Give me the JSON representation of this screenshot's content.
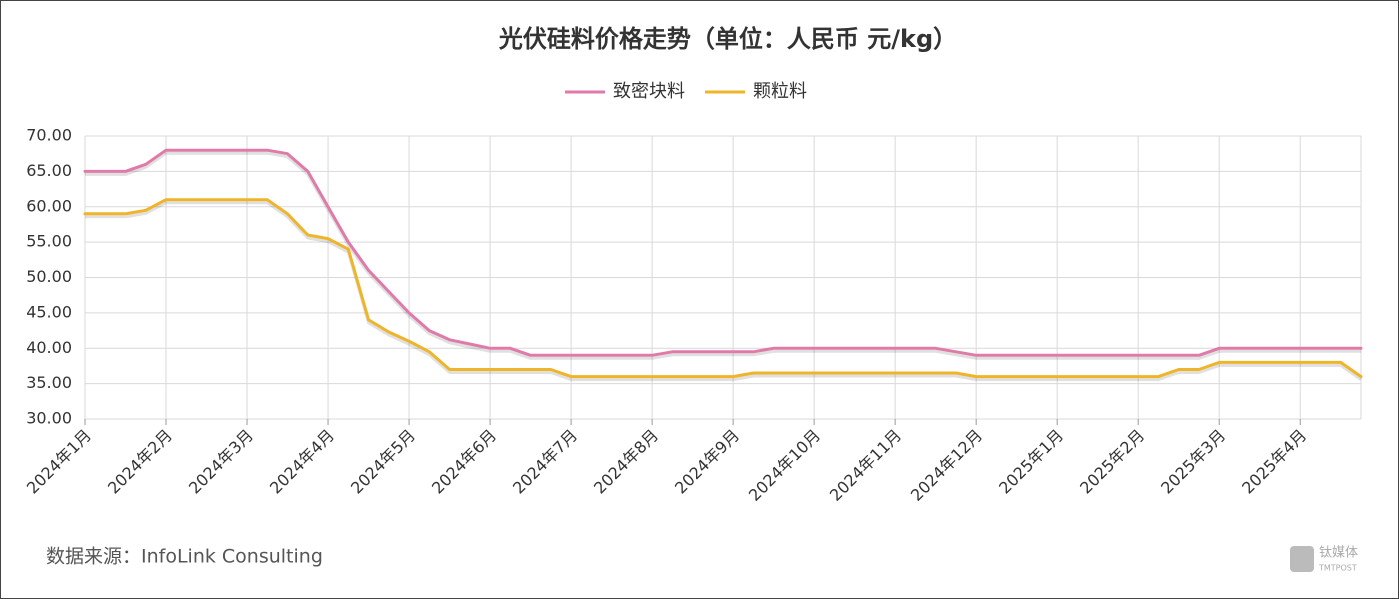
{
  "chart_data": {
    "type": "line",
    "title": "光伏硅料价格走势（单位：人民币 元/kg）",
    "source": "数据来源：InfoLink Consulting",
    "watermark": "钛媒体",
    "watermark_sub": "TMTPOST",
    "categories": [
      "2024年1月",
      null,
      null,
      null,
      "2024年2月",
      null,
      null,
      null,
      "2024年3月",
      null,
      null,
      null,
      "2024年4月",
      null,
      null,
      null,
      "2024年5月",
      null,
      null,
      null,
      "2024年6月",
      null,
      null,
      null,
      "2024年7月",
      null,
      null,
      null,
      "2024年8月",
      null,
      null,
      null,
      "2024年9月",
      null,
      null,
      null,
      "2024年10月",
      null,
      null,
      null,
      "2024年11月",
      null,
      null,
      null,
      "2024年12月",
      null,
      null,
      null,
      "2025年1月",
      null,
      null,
      null,
      "2025年2月",
      null,
      null,
      null,
      "2025年3月",
      null,
      null,
      null,
      "2025年4月",
      null,
      null,
      null
    ],
    "series": [
      {
        "name": "致密块料",
        "color": "#e07aa8",
        "values": [
          65,
          65,
          65,
          66,
          68,
          68,
          68,
          68,
          68,
          68,
          67.5,
          65,
          60,
          55,
          51,
          48,
          45,
          42.5,
          41.2,
          40.6,
          40,
          40,
          39,
          39,
          39,
          39,
          39,
          39,
          39,
          39.5,
          39.5,
          39.5,
          39.5,
          39.5,
          40,
          40,
          40,
          40,
          40,
          40,
          40,
          40,
          40,
          39.5,
          39,
          39,
          39,
          39,
          39,
          39,
          39,
          39,
          39,
          39,
          39,
          39,
          40,
          40,
          40,
          40,
          40,
          40,
          40,
          40
        ]
      },
      {
        "name": "颗粒料",
        "color": "#f0b429",
        "values": [
          59,
          59,
          59,
          59.5,
          61,
          61,
          61,
          61,
          61,
          61,
          59,
          56,
          55.5,
          54,
          44,
          42.3,
          41,
          39.5,
          37,
          37,
          37,
          37,
          37,
          37,
          36,
          36,
          36,
          36,
          36,
          36,
          36,
          36,
          36,
          36.5,
          36.5,
          36.5,
          36.5,
          36.5,
          36.5,
          36.5,
          36.5,
          36.5,
          36.5,
          36.5,
          36,
          36,
          36,
          36,
          36,
          36,
          36,
          36,
          36,
          36,
          37,
          37,
          38,
          38,
          38,
          38,
          38,
          38,
          38,
          36
        ]
      }
    ],
    "ylim": [
      30,
      70
    ],
    "yticks": [
      {
        "value": 30,
        "label": "30.00"
      },
      {
        "value": 35,
        "label": "35.00"
      },
      {
        "value": 40,
        "label": "40.00"
      },
      {
        "value": 45,
        "label": "45.00"
      },
      {
        "value": 50,
        "label": "50.00"
      },
      {
        "value": 55,
        "label": "55.00"
      },
      {
        "value": 60,
        "label": "60.00"
      },
      {
        "value": 65,
        "label": "65.00"
      },
      {
        "value": 70,
        "label": "70.00"
      }
    ],
    "grid": true,
    "legend": "top"
  }
}
